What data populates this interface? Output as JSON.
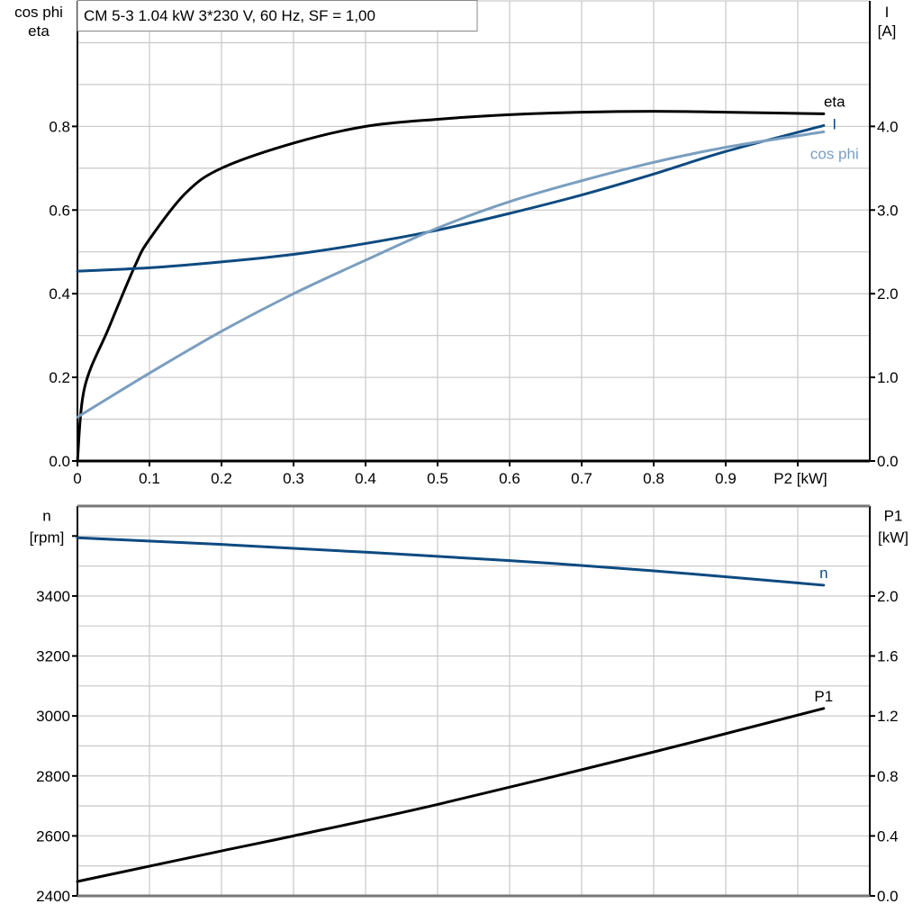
{
  "title": "CM 5-3   1.04 kW   3*230 V, 60 Hz, SF = 1,00",
  "colors": {
    "eta": "#000000",
    "I": "#0d4a80",
    "cos_phi": "#7a9ebf",
    "n": "#0d4a80",
    "P1": "#000000",
    "grid": "#cccccc"
  },
  "chart_data": [
    {
      "type": "line",
      "xlabel": "P2 [kW]",
      "xlim": [
        0,
        1.1
      ],
      "xticks": [
        "0",
        "0.1",
        "0.2",
        "0.3",
        "0.4",
        "0.5",
        "0.6",
        "0.7",
        "0.8",
        "0.9"
      ],
      "ylabel_left": [
        "cos phi",
        "eta"
      ],
      "ylim_left": [
        0,
        1.1
      ],
      "yticks_left": [
        "0.0",
        "0.2",
        "0.4",
        "0.6",
        "0.8"
      ],
      "ylabel_right": [
        "I",
        "[A]"
      ],
      "ylim_right": [
        0,
        5.5
      ],
      "yticks_right": [
        "0.0",
        "1.0",
        "2.0",
        "3.0",
        "4.0"
      ],
      "grid": true,
      "series": [
        {
          "name": "eta",
          "axis": "left",
          "x": [
            0,
            0.01,
            0.043,
            0.08,
            0.1,
            0.15,
            0.2,
            0.3,
            0.4,
            0.5,
            0.6,
            0.7,
            0.8,
            0.9,
            1.036
          ],
          "y": [
            0,
            0.176,
            0.316,
            0.467,
            0.53,
            0.64,
            0.7,
            0.76,
            0.8,
            0.817,
            0.828,
            0.834,
            0.836,
            0.834,
            0.83
          ]
        },
        {
          "name": "I",
          "axis": "right",
          "x": [
            0,
            0.1,
            0.2,
            0.3,
            0.4,
            0.5,
            0.6,
            0.7,
            0.8,
            0.9,
            1.036
          ],
          "y": [
            2.27,
            2.31,
            2.38,
            2.47,
            2.6,
            2.76,
            2.96,
            3.18,
            3.43,
            3.7,
            4.01
          ]
        },
        {
          "name": "cos phi",
          "axis": "left",
          "x": [
            0,
            0.1,
            0.2,
            0.3,
            0.4,
            0.5,
            0.6,
            0.7,
            0.8,
            0.9,
            1.036
          ],
          "y": [
            0.105,
            0.21,
            0.31,
            0.4,
            0.48,
            0.557,
            0.62,
            0.67,
            0.714,
            0.75,
            0.787
          ]
        }
      ]
    },
    {
      "type": "line",
      "xlim": [
        0,
        1.1
      ],
      "ylabel_left": [
        "n",
        "[rpm]"
      ],
      "ylim_left": [
        2400,
        3700
      ],
      "yticks_left": [
        "2400",
        "2600",
        "2800",
        "3000",
        "3200",
        "3400"
      ],
      "ylabel_right": [
        "P1",
        "[kW]"
      ],
      "ylim_right": [
        0,
        2.6
      ],
      "yticks_right": [
        "0.0",
        "0.4",
        "0.8",
        "1.2",
        "1.6",
        "2.0"
      ],
      "grid": true,
      "series": [
        {
          "name": "n",
          "axis": "left",
          "x": [
            0,
            0.2,
            0.4,
            0.6,
            0.8,
            1.036
          ],
          "y": [
            3594,
            3572,
            3546,
            3518,
            3484,
            3436
          ]
        },
        {
          "name": "P1",
          "axis": "right",
          "x": [
            0,
            0.2,
            0.3,
            0.5,
            0.8,
            1.036
          ],
          "y": [
            0.096,
            0.3,
            0.4,
            0.61,
            0.96,
            1.25
          ]
        }
      ]
    }
  ]
}
